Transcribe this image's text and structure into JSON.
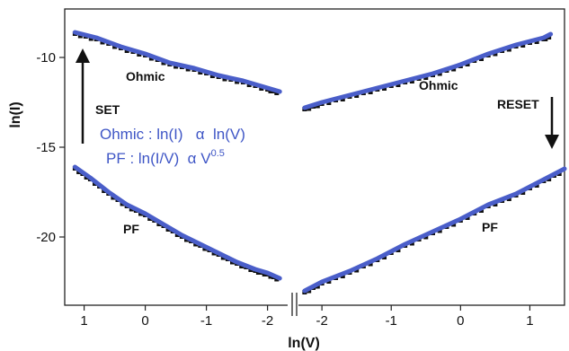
{
  "chart_data": {
    "type": "line",
    "xlabel": "ln(V)",
    "ylabel": "ln(I)",
    "x_axis_break": true,
    "grid": false,
    "legend": "none",
    "panels": [
      {
        "name": "left",
        "xlim": [
          1.2,
          -2.3
        ],
        "x_tick_labels": [
          "1",
          "0",
          "-1",
          "-2"
        ],
        "x_ticks": [
          1,
          0,
          -1,
          -2
        ]
      },
      {
        "name": "right",
        "xlim": [
          -2.3,
          1.5
        ],
        "x_tick_labels": [
          "-2",
          "-1",
          "0",
          "1"
        ],
        "x_ticks": [
          -2,
          -1,
          0,
          1
        ]
      }
    ],
    "ylim": [
      -23.8,
      -7.3
    ],
    "y_ticks": [
      -10,
      -15,
      -20
    ],
    "y_tick_labels": [
      "-10",
      "-15",
      "-20"
    ],
    "series": [
      {
        "panel": "left",
        "label": "Ohmic",
        "points": [
          [
            1.15,
            -8.6
          ],
          [
            0.8,
            -8.9
          ],
          [
            0.4,
            -9.4
          ],
          [
            0.0,
            -9.8
          ],
          [
            -0.4,
            -10.3
          ],
          [
            -0.8,
            -10.6
          ],
          [
            -1.2,
            -11.0
          ],
          [
            -1.6,
            -11.3
          ],
          [
            -2.0,
            -11.7
          ],
          [
            -2.2,
            -11.9
          ]
        ],
        "line_color": "#4a5ec9",
        "marker_color": "#111111"
      },
      {
        "panel": "left",
        "label": "PF",
        "points": [
          [
            1.15,
            -16.1
          ],
          [
            0.9,
            -16.7
          ],
          [
            0.6,
            -17.5
          ],
          [
            0.3,
            -18.2
          ],
          [
            0.0,
            -18.7
          ],
          [
            -0.3,
            -19.3
          ],
          [
            -0.6,
            -19.9
          ],
          [
            -0.9,
            -20.4
          ],
          [
            -1.2,
            -20.9
          ],
          [
            -1.5,
            -21.4
          ],
          [
            -1.8,
            -21.8
          ],
          [
            -2.0,
            -22.0
          ],
          [
            -2.2,
            -22.3
          ]
        ],
        "line_color": "#4a5ec9",
        "marker_color": "#111111"
      },
      {
        "panel": "right",
        "label": "Ohmic",
        "points": [
          [
            -2.25,
            -12.8
          ],
          [
            -2.0,
            -12.5
          ],
          [
            -1.6,
            -12.1
          ],
          [
            -1.2,
            -11.7
          ],
          [
            -0.8,
            -11.3
          ],
          [
            -0.4,
            -10.9
          ],
          [
            0.0,
            -10.4
          ],
          [
            0.4,
            -9.8
          ],
          [
            0.8,
            -9.3
          ],
          [
            1.2,
            -8.9
          ],
          [
            1.3,
            -8.7
          ]
        ],
        "line_color": "#4a5ec9",
        "marker_color": "#111111"
      },
      {
        "panel": "right",
        "label": "PF",
        "points": [
          [
            -2.25,
            -23.0
          ],
          [
            -2.0,
            -22.5
          ],
          [
            -1.6,
            -21.9
          ],
          [
            -1.2,
            -21.2
          ],
          [
            -0.8,
            -20.4
          ],
          [
            -0.4,
            -19.7
          ],
          [
            0.0,
            -19.0
          ],
          [
            0.4,
            -18.2
          ],
          [
            0.8,
            -17.6
          ],
          [
            1.2,
            -16.8
          ],
          [
            1.5,
            -16.2
          ]
        ],
        "line_color": "#4a5ec9",
        "marker_color": "#111111"
      }
    ],
    "annotations": {
      "ohmic_left": "Ohmic",
      "ohmic_right": "Ohmic",
      "pf_left": "PF",
      "pf_right": "PF",
      "set": "SET",
      "reset": "RESET",
      "eq_ohmic": "Ohmic : ln(I)   α  ln(V)",
      "eq_pf": "PF : ln(I/V)  α V",
      "eq_pf_exp": "0.5",
      "eq_color": "#3f56c6"
    }
  }
}
